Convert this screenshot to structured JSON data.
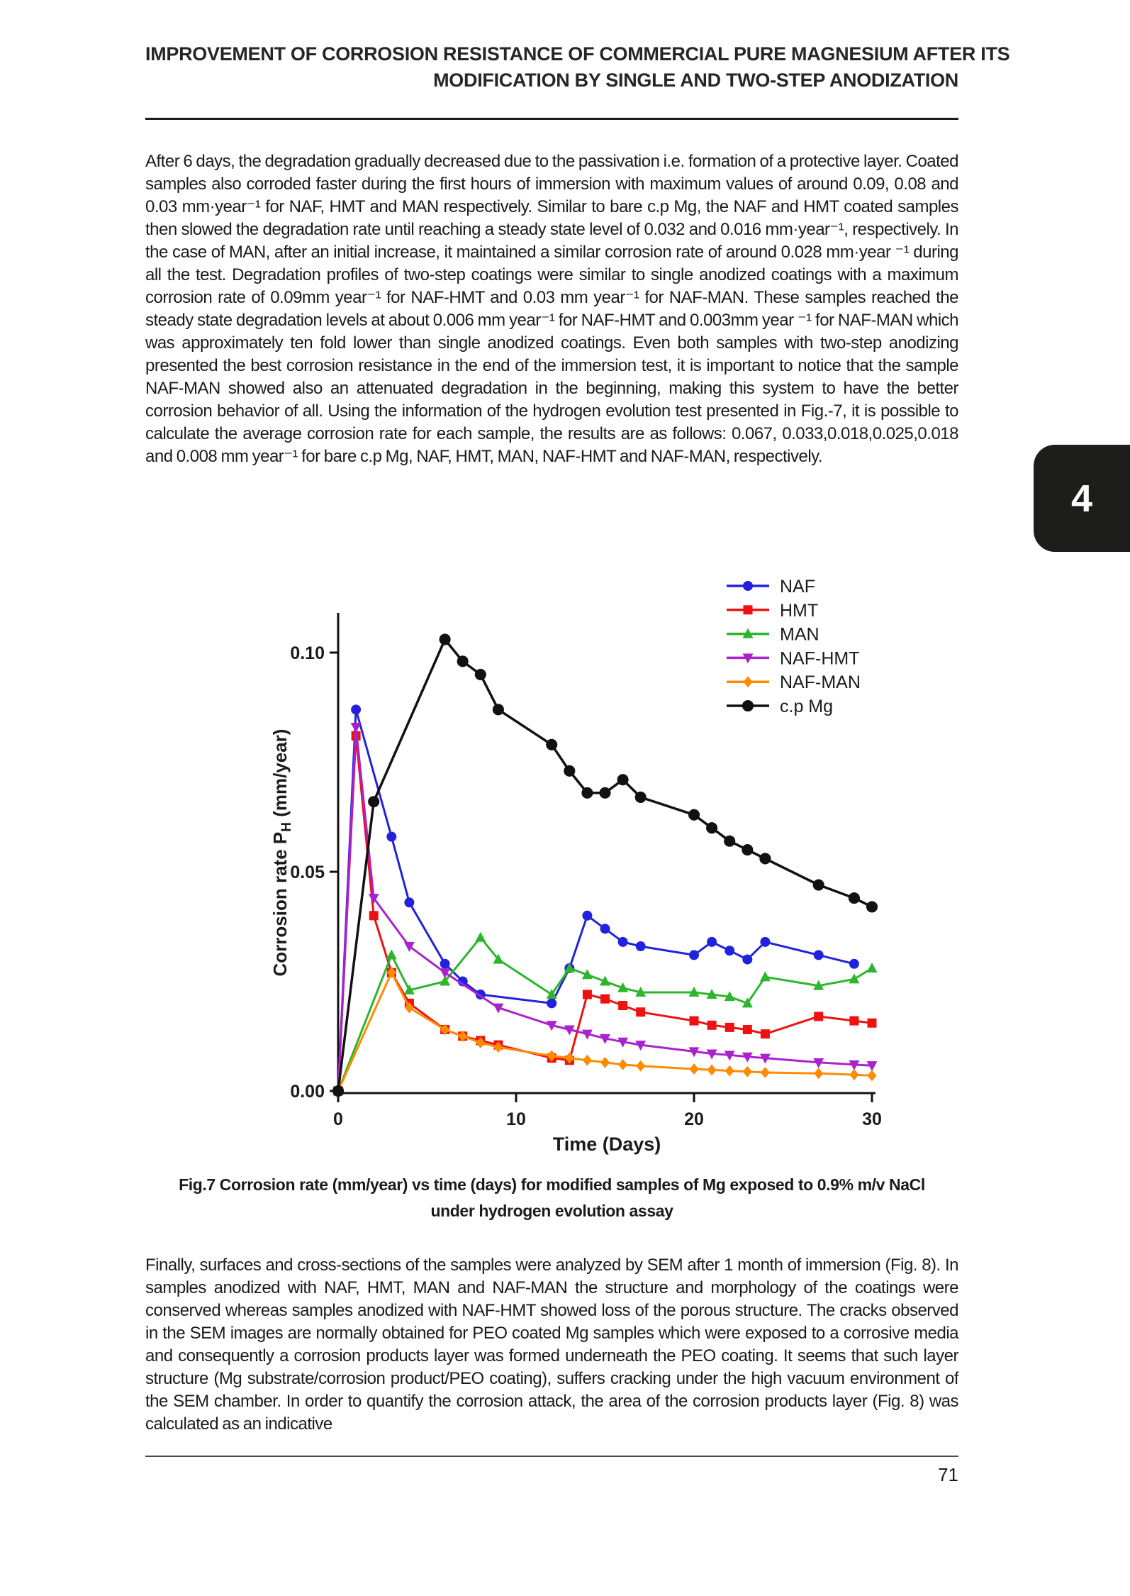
{
  "page": {
    "header": {
      "title_line1": "IMPROVEMENT OF CORROSION RESISTANCE OF COMMERCIAL PURE MAGNESIUM AFTER ITS",
      "title_line2": "MODIFICATION BY SINGLE AND TWO-STEP ANODIZATION"
    },
    "paragraph_1": "After 6 days, the degradation gradually decreased due to the passivation i.e. formation of a protective layer. Coated samples also corroded faster during the first hours of immersion with maximum values of around 0.09, 0.08 and 0.03 mm·year⁻¹ for NAF, HMT and MAN respectively. Similar to bare c.p Mg, the NAF and HMT coated samples then slowed the degradation rate until reaching a steady state level of 0.032 and 0.016 mm·year⁻¹, respectively. In the case of MAN, after an initial increase, it maintained a similar corrosion rate of around 0.028 mm·year ⁻¹ during all the test. Degradation profiles of two-step coatings were similar to single anodized coatings with a maximum corrosion rate of 0.09mm year⁻¹ for NAF-HMT and 0.03 mm year⁻¹ for NAF-MAN. These samples reached the steady state degradation levels at about 0.006 mm year⁻¹ for NAF-HMT and 0.003mm year ⁻¹ for NAF-MAN which was approximately ten fold lower than single anodized coatings. Even both samples with two-step anodizing presented the best corrosion resistance in the end of the immersion test, it is important to notice that the sample NAF-MAN showed also an attenuated degradation in the beginning, making this system to have the better corrosion behavior of all. Using the information of the hydrogen evolution test presented in Fig.-7, it is possible to calculate the average corrosion rate for each sample, the results are as follows: 0.067, 0.033,0.018,0.025,0.018 and 0.008 mm year⁻¹ for bare c.p Mg, NAF, HMT, MAN, NAF-HMT and NAF-MAN, respectively.",
    "figure": {
      "caption_line1": "Fig.7 Corrosion rate (mm/year) vs time (days) for modified samples of Mg exposed to 0.9% m/v NaCl",
      "caption_line2": "under hydrogen evolution assay"
    },
    "paragraph_2": "Finally, surfaces and cross-sections of the samples were analyzed by SEM after 1 month of immersion (Fig. 8). In samples anodized with NAF, HMT, MAN and NAF-MAN the structure and morphology of the coatings were conserved whereas samples anodized with NAF-HMT showed loss of the porous structure. The cracks observed in the SEM images are normally obtained for PEO coated Mg samples which were exposed to a corrosive media and consequently a corrosion products layer was formed underneath the PEO coating. It seems that such layer structure (Mg substrate/corrosion product/PEO coating), suffers cracking under the high vacuum environment of the SEM chamber. In order to quantify the corrosion attack, the area of the corrosion products layer (Fig. 8) was calculated as an indicative",
    "page_number": "71",
    "chapter_tab": "4"
  },
  "chart_data": {
    "type": "line",
    "title": "",
    "xlabel": "Time (Days)",
    "ylabel": "Corrosion rate PH (mm/year)",
    "ylabel_pre": "Corrosion rate P",
    "ylabel_sub": "H",
    "ylabel_post": " (mm/year)",
    "xlim": [
      0,
      30
    ],
    "ylim": [
      0,
      0.11
    ],
    "xticks": [
      "0",
      "10",
      "20",
      "30"
    ],
    "xtick_values": [
      0,
      10,
      20,
      30
    ],
    "yticks": [
      "0.00",
      "0.05",
      "0.10"
    ],
    "ytick_values": [
      0,
      0.05,
      0.1
    ],
    "grid": false,
    "legend_position": "top-right",
    "series": [
      {
        "name": "NAF",
        "color": "#2222dd",
        "marker": "circle",
        "points": [
          [
            0,
            0
          ],
          [
            1,
            0.087
          ],
          [
            3,
            0.058
          ],
          [
            4,
            0.043
          ],
          [
            6,
            0.029
          ],
          [
            7,
            0.025
          ],
          [
            8,
            0.022
          ],
          [
            12,
            0.02
          ],
          [
            13,
            0.028
          ],
          [
            14,
            0.04
          ],
          [
            15,
            0.037
          ],
          [
            16,
            0.034
          ],
          [
            17,
            0.033
          ],
          [
            20,
            0.031
          ],
          [
            21,
            0.034
          ],
          [
            22,
            0.032
          ],
          [
            23,
            0.03
          ],
          [
            24,
            0.034
          ],
          [
            27,
            0.031
          ],
          [
            29,
            0.029
          ]
        ]
      },
      {
        "name": "HMT",
        "color": "#ee1111",
        "marker": "square",
        "points": [
          [
            0,
            0
          ],
          [
            1,
            0.081
          ],
          [
            2,
            0.04
          ],
          [
            3,
            0.027
          ],
          [
            4,
            0.02
          ],
          [
            6,
            0.014
          ],
          [
            7,
            0.0125
          ],
          [
            8,
            0.0115
          ],
          [
            9,
            0.0105
          ],
          [
            12,
            0.0075
          ],
          [
            13,
            0.007
          ],
          [
            14,
            0.022
          ],
          [
            15,
            0.021
          ],
          [
            16,
            0.0195
          ],
          [
            17,
            0.018
          ],
          [
            20,
            0.016
          ],
          [
            21,
            0.015
          ],
          [
            22,
            0.0145
          ],
          [
            23,
            0.014
          ],
          [
            24,
            0.013
          ],
          [
            27,
            0.017
          ],
          [
            29,
            0.016
          ],
          [
            30,
            0.0155
          ]
        ]
      },
      {
        "name": "MAN",
        "color": "#2db52d",
        "marker": "triangle-up",
        "points": [
          [
            0,
            0
          ],
          [
            3,
            0.031
          ],
          [
            4,
            0.023
          ],
          [
            6,
            0.025
          ],
          [
            8,
            0.035
          ],
          [
            9,
            0.03
          ],
          [
            12,
            0.022
          ],
          [
            13,
            0.028
          ],
          [
            14,
            0.0265
          ],
          [
            15,
            0.025
          ],
          [
            16,
            0.0235
          ],
          [
            17,
            0.0225
          ],
          [
            20,
            0.0225
          ],
          [
            21,
            0.022
          ],
          [
            22,
            0.0215
          ],
          [
            23,
            0.02
          ],
          [
            24,
            0.026
          ],
          [
            27,
            0.024
          ],
          [
            29,
            0.0255
          ],
          [
            30,
            0.028
          ]
        ]
      },
      {
        "name": "NAF-HMT",
        "color": "#aa22cc",
        "marker": "triangle-down",
        "points": [
          [
            0,
            0
          ],
          [
            1,
            0.083
          ],
          [
            2,
            0.044
          ],
          [
            4,
            0.033
          ],
          [
            6,
            0.027
          ],
          [
            9,
            0.019
          ],
          [
            12,
            0.015
          ],
          [
            13,
            0.014
          ],
          [
            14,
            0.013
          ],
          [
            15,
            0.012
          ],
          [
            16,
            0.0112
          ],
          [
            17,
            0.0105
          ],
          [
            20,
            0.009
          ],
          [
            21,
            0.0085
          ],
          [
            22,
            0.0082
          ],
          [
            23,
            0.0078
          ],
          [
            24,
            0.0075
          ],
          [
            27,
            0.0065
          ],
          [
            29,
            0.006
          ],
          [
            30,
            0.0058
          ]
        ]
      },
      {
        "name": "NAF-MAN",
        "color": "#ff8c00",
        "marker": "diamond",
        "points": [
          [
            0,
            0
          ],
          [
            3,
            0.027
          ],
          [
            4,
            0.019
          ],
          [
            6,
            0.014
          ],
          [
            7,
            0.0125
          ],
          [
            8,
            0.011
          ],
          [
            9,
            0.01
          ],
          [
            12,
            0.008
          ],
          [
            13,
            0.0075
          ],
          [
            14,
            0.007
          ],
          [
            15,
            0.0065
          ],
          [
            16,
            0.006
          ],
          [
            17,
            0.0057
          ],
          [
            20,
            0.005
          ],
          [
            21,
            0.0048
          ],
          [
            22,
            0.0046
          ],
          [
            23,
            0.0044
          ],
          [
            24,
            0.0042
          ],
          [
            27,
            0.004
          ],
          [
            29,
            0.0037
          ],
          [
            30,
            0.0035
          ]
        ]
      },
      {
        "name": "c.p Mg",
        "color": "#111111",
        "marker": "circle",
        "points": [
          [
            0,
            0
          ],
          [
            2,
            0.066
          ],
          [
            6,
            0.103
          ],
          [
            7,
            0.098
          ],
          [
            8,
            0.095
          ],
          [
            9,
            0.087
          ],
          [
            12,
            0.079
          ],
          [
            13,
            0.073
          ],
          [
            14,
            0.068
          ],
          [
            15,
            0.068
          ],
          [
            16,
            0.071
          ],
          [
            17,
            0.067
          ],
          [
            20,
            0.063
          ],
          [
            21,
            0.06
          ],
          [
            22,
            0.057
          ],
          [
            23,
            0.055
          ],
          [
            24,
            0.053
          ],
          [
            27,
            0.047
          ],
          [
            29,
            0.044
          ],
          [
            30,
            0.042
          ]
        ]
      }
    ]
  }
}
